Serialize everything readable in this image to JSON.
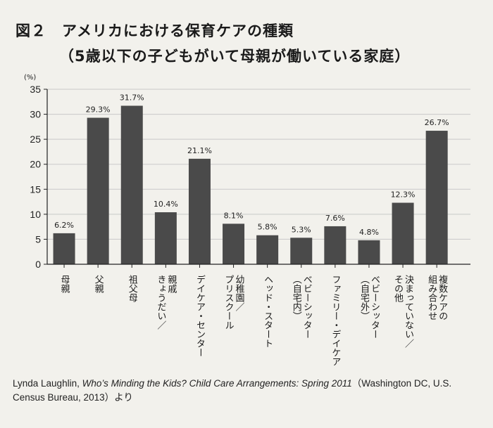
{
  "title": {
    "figure_number": "図２",
    "main": "アメリカにおける保育ケアの種類",
    "sub": "（5歳以下の子どもがいて母親が働いている家庭）"
  },
  "chart_data": {
    "type": "bar",
    "y_unit_label": "(%)",
    "ylim": [
      0,
      35
    ],
    "yticks": [
      0,
      5,
      10,
      15,
      20,
      25,
      30,
      35
    ],
    "grid": true,
    "bar_color": "#4a4a4a",
    "grid_color": "#c9c9c9",
    "categories": [
      "母親",
      "父親",
      "祖父母",
      "親戚",
      "デイケア・センター",
      "幼稚園／プリスクール",
      "ヘッド・スタート",
      "ベビーシッター（自宅内）",
      "ファミリー・デイケア",
      "ベビーシッター（自宅外）",
      "決まっていない／その他",
      "複数ケアの組み合わせ"
    ],
    "category_label_columns": [
      [
        "母親"
      ],
      [
        "父親"
      ],
      [
        "祖父母"
      ],
      [
        "親戚",
        "きょうだい／"
      ],
      [
        "デイケア・センター"
      ],
      [
        "幼稚園／",
        "プリスクール"
      ],
      [
        "ヘッド・スタート"
      ],
      [
        "ベビーシッター",
        "（自宅内）"
      ],
      [
        "ファミリー・デイケア"
      ],
      [
        "ベビーシッター",
        "（自宅外）"
      ],
      [
        "決まっていない／",
        "その他"
      ],
      [
        "複数ケアの",
        "組み合わせ"
      ]
    ],
    "values": [
      6.2,
      29.3,
      31.7,
      10.4,
      21.1,
      8.1,
      5.8,
      5.3,
      7.6,
      4.8,
      12.3,
      26.7
    ],
    "value_labels": [
      "6.2%",
      "29.3%",
      "31.7%",
      "10.4%",
      "21.1%",
      "8.1%",
      "5.8%",
      "5.3%",
      "7.6%",
      "4.8%",
      "12.3%",
      "26.7%"
    ]
  },
  "source": {
    "author": "Lynda Laughlin, ",
    "book": "Who’s Minding the Kids? Child Care Arrangements: Spring 2011",
    "publisher": "（Washington DC, U.S. Census Bureau, 2013）より"
  }
}
